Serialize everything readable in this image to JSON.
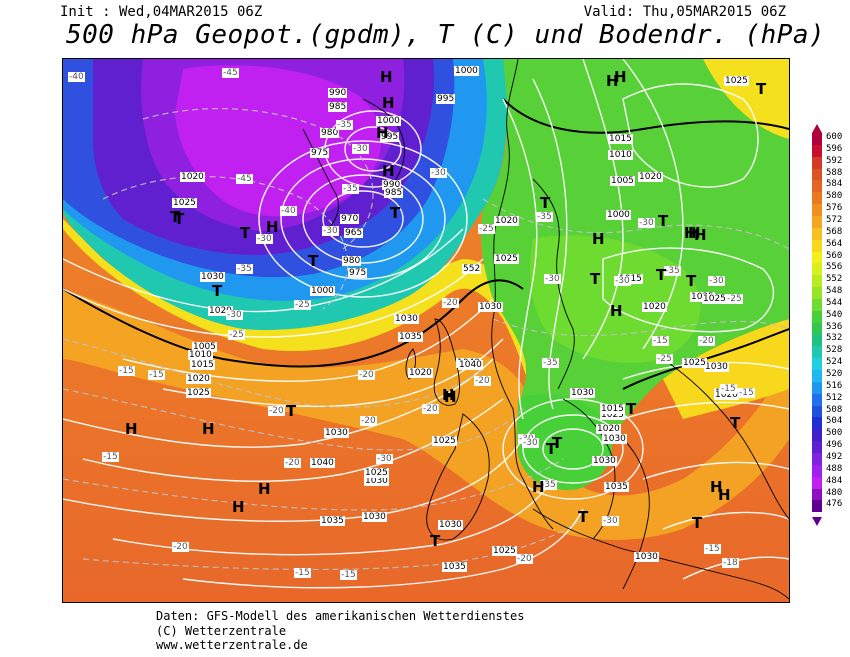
{
  "header": {
    "init": "Init : Wed,04MAR2015 06Z",
    "valid": "Valid: Thu,05MAR2015 06Z",
    "title": "500 hPa Geopot.(gpdm), T (C) und Bodendr. (hPa)"
  },
  "footer": {
    "line1": "Daten: GFS-Modell des amerikanischen Wetterdienstes",
    "line2": "(C) Wetterzentrale",
    "line3": "www.wetterzentrale.de"
  },
  "legend": {
    "values": [
      "600",
      "596",
      "592",
      "588",
      "584",
      "580",
      "576",
      "572",
      "568",
      "564",
      "560",
      "556",
      "552",
      "548",
      "544",
      "540",
      "536",
      "532",
      "528",
      "524",
      "520",
      "516",
      "512",
      "508",
      "504",
      "500",
      "496",
      "492",
      "488",
      "484",
      "480",
      "476"
    ],
    "colors": [
      "#b0003c",
      "#c8102e",
      "#d43a2a",
      "#dc5424",
      "#e46424",
      "#ea7a20",
      "#f09020",
      "#f5a722",
      "#f8c020",
      "#f8d81c",
      "#f4f01c",
      "#d8f01c",
      "#b8ec20",
      "#98e428",
      "#70dc30",
      "#48d038",
      "#30c850",
      "#20c080",
      "#20c8b0",
      "#20d0e0",
      "#20b8f0",
      "#2098f0",
      "#2070f0",
      "#2050e0",
      "#2030d0",
      "#4020c8",
      "#6020d0",
      "#8020e0",
      "#a020f0",
      "#c020f0",
      "#9010c0",
      "#600090"
    ]
  },
  "map": {
    "pressure_labels": [
      "1000",
      "995",
      "990",
      "985",
      "980",
      "975",
      "970",
      "965",
      "1000",
      "995",
      "990",
      "985",
      "980",
      "975",
      "1000",
      "1005",
      "1010",
      "1015",
      "1020",
      "1025",
      "1030",
      "1035",
      "1040",
      "1020",
      "1025",
      "1030",
      "1020",
      "1025",
      "1030",
      "1035",
      "1040",
      "1030",
      "1035",
      "1040",
      "1030",
      "1025",
      "1020",
      "1025",
      "1030",
      "1020",
      "1015",
      "1010",
      "1005",
      "1000",
      "1015",
      "1020",
      "1025",
      "1030",
      "1035",
      "1030",
      "1025",
      "1020",
      "1015",
      "1030",
      "1025",
      "1020",
      "1025",
      "1030",
      "1035",
      "1030",
      "1025",
      "1020",
      "1025",
      "1030"
    ],
    "temp_labels": [
      "-40",
      "-45",
      "-40",
      "-45",
      "-35",
      "-30",
      "-35",
      "-30",
      "-30",
      "-35",
      "-25",
      "-30",
      "-25",
      "-20",
      "-15",
      "-15",
      "-15",
      "-20",
      "-20",
      "-20",
      "-25",
      "-30",
      "-35",
      "-30",
      "-35",
      "-25",
      "-30",
      "-30",
      "-35",
      "-30",
      "-25",
      "-20",
      "-15",
      "-15",
      "-20",
      "-15",
      "-15",
      "-30",
      "-30",
      "-35",
      "-30",
      "-20",
      "-15",
      "-18",
      "-20",
      "-30",
      "-20",
      "-15",
      "-20"
    ],
    "contour_label_552": "552",
    "highs": [
      "H",
      "H",
      "H",
      "H",
      "H",
      "H",
      "H",
      "H",
      "H",
      "H",
      "H",
      "H",
      "H",
      "H",
      "H",
      "H",
      "H",
      "H",
      "H",
      "H",
      "H"
    ],
    "lows": [
      "T",
      "T",
      "T",
      "T",
      "T",
      "T",
      "T",
      "T",
      "T",
      "T",
      "T",
      "T",
      "T",
      "T",
      "T",
      "T",
      "T",
      "T",
      "T",
      "T"
    ]
  }
}
